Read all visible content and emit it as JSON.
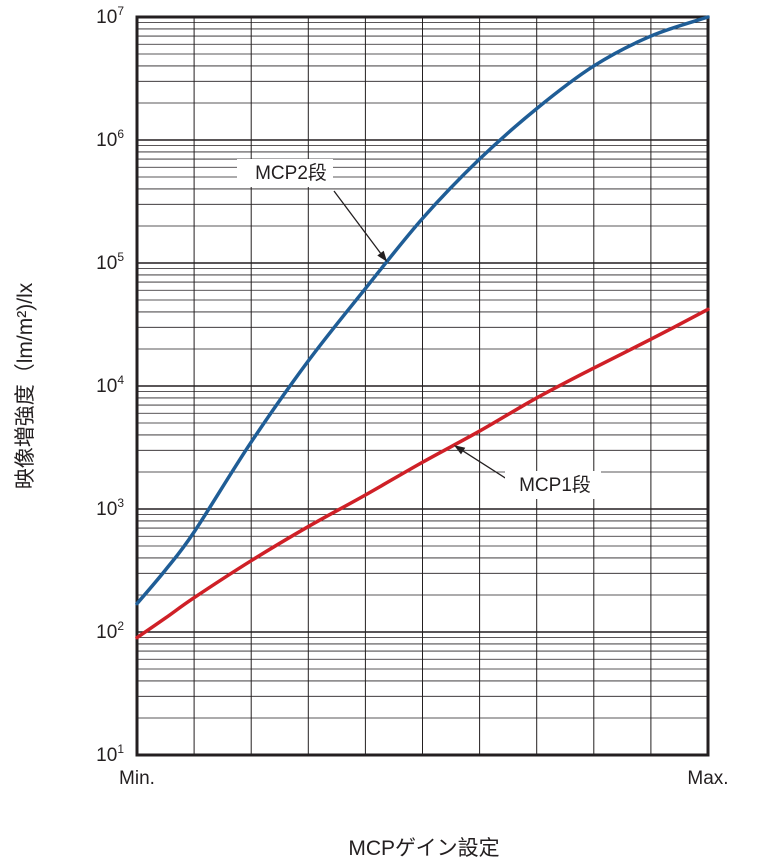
{
  "chart_data": {
    "type": "line",
    "xlabel": "MCPゲイン設定",
    "ylabel": "映像増強度（lm/m²)/lx",
    "x_tick_labels": [
      "Min.",
      "Max."
    ],
    "x": [
      0,
      0.05,
      0.1,
      0.2,
      0.3,
      0.4,
      0.5,
      0.6,
      0.7,
      0.8,
      0.9,
      1.0
    ],
    "xlim": [
      0,
      1
    ],
    "yscale": "log",
    "ylim": [
      10,
      10000000
    ],
    "y_ticks": [
      {
        "base": "10",
        "exp": "1",
        "value": 10
      },
      {
        "base": "10",
        "exp": "2",
        "value": 100
      },
      {
        "base": "10",
        "exp": "3",
        "value": 1000
      },
      {
        "base": "10",
        "exp": "4",
        "value": 10000
      },
      {
        "base": "10",
        "exp": "5",
        "value": 100000
      },
      {
        "base": "10",
        "exp": "6",
        "value": 1000000
      },
      {
        "base": "10",
        "exp": "7",
        "value": 10000000
      }
    ],
    "grid": true,
    "series": [
      {
        "name": "MCP2段",
        "color": "#1f5d96",
        "values": [
          170,
          320,
          650,
          3500,
          16000,
          62000,
          230000,
          700000,
          1800000,
          4000000,
          7000000,
          10000000
        ]
      },
      {
        "name": "MCP1段",
        "color": "#cf2027",
        "values": [
          90,
          130,
          190,
          380,
          720,
          1300,
          2400,
          4300,
          8000,
          14000,
          24000,
          42000
        ]
      }
    ]
  }
}
